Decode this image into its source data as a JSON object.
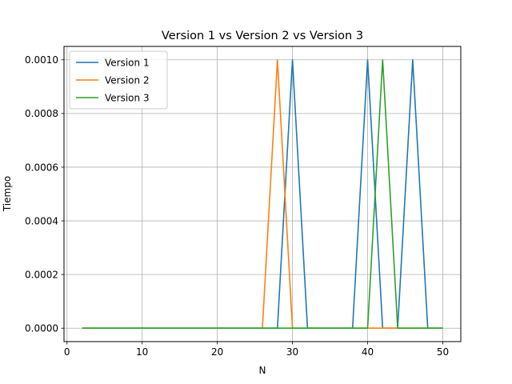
{
  "chart_data": {
    "type": "line",
    "title": "Version 1 vs Version 2 vs Version 3",
    "xlabel": "N",
    "ylabel": "Tiempo",
    "xlim": [
      -0.4,
      52.4
    ],
    "ylim": [
      -5e-05,
      0.00105
    ],
    "xticks": [
      0,
      10,
      20,
      30,
      40,
      50
    ],
    "xtick_labels": [
      "0",
      "10",
      "20",
      "30",
      "40",
      "50"
    ],
    "yticks": [
      0,
      0.0002,
      0.0004,
      0.0006,
      0.0008,
      0.001
    ],
    "ytick_labels": [
      "0.0000",
      "0.0002",
      "0.0004",
      "0.0006",
      "0.0008",
      "0.0010"
    ],
    "grid": true,
    "legend_position": "top-left",
    "x": [
      2,
      4,
      6,
      8,
      10,
      12,
      14,
      16,
      18,
      20,
      22,
      24,
      26,
      28,
      30,
      32,
      34,
      36,
      38,
      40,
      42,
      44,
      46,
      48,
      50
    ],
    "series": [
      {
        "name": "Version 1",
        "color": "#1f77b4",
        "values": [
          0,
          0,
          0,
          0,
          0,
          0,
          0,
          0,
          0,
          0,
          0,
          0,
          0,
          0,
          0.001,
          0,
          0,
          0,
          0,
          0.001,
          0,
          0,
          0.001,
          0,
          0
        ]
      },
      {
        "name": "Version 2",
        "color": "#ff7f0e",
        "values": [
          0,
          0,
          0,
          0,
          0,
          0,
          0,
          0,
          0,
          0,
          0,
          0,
          0,
          0.001,
          0,
          0,
          0,
          0,
          0,
          0,
          0,
          0,
          0,
          0,
          0
        ]
      },
      {
        "name": "Version 3",
        "color": "#2ca02c",
        "values": [
          0,
          0,
          0,
          0,
          0,
          0,
          0,
          0,
          0,
          0,
          0,
          0,
          0,
          0,
          0,
          0,
          0,
          0,
          0,
          0,
          0.001,
          0,
          0,
          0,
          0
        ]
      }
    ]
  }
}
